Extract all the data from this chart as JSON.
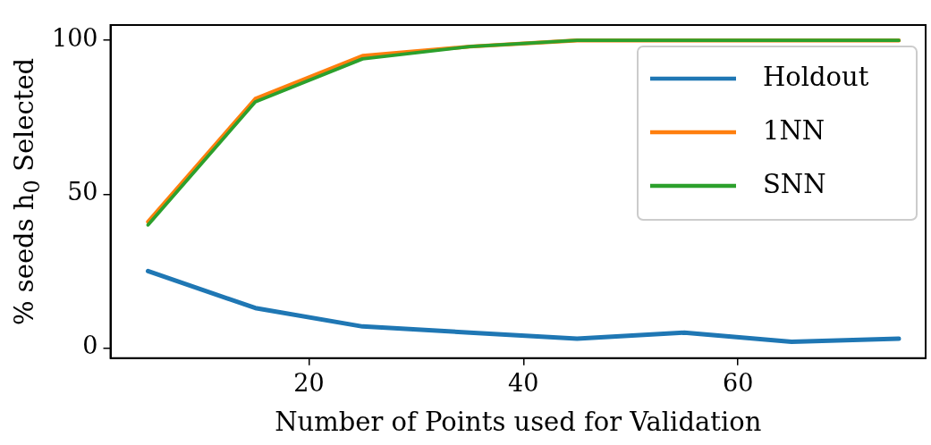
{
  "chart_data": {
    "type": "line",
    "xlabel": "Number of Points used for Validation",
    "ylabel": "% seeds h$_{0}$ Selected",
    "x": [
      5,
      15,
      25,
      35,
      45,
      55,
      65,
      75
    ],
    "series": [
      {
        "name": "Holdout",
        "color": "#1f77b4",
        "values": [
          25,
          13,
          7,
          5,
          3,
          5,
          2,
          3
        ]
      },
      {
        "name": "1NN",
        "color": "#ff7f0e",
        "values": [
          41,
          81,
          95,
          98,
          100,
          100,
          100,
          100
        ]
      },
      {
        "name": "SNN",
        "color": "#2ca02c",
        "values": [
          40,
          80,
          94,
          98,
          100,
          100,
          100,
          100
        ]
      }
    ],
    "xlim": [
      1.5,
      77.5
    ],
    "xticks": [
      20,
      40,
      60
    ],
    "ylim": [
      -3.3,
      105
    ],
    "yticks": [
      0,
      50,
      100
    ],
    "grid": false,
    "legend": "top right",
    "marker": "none",
    "line_style": "solid"
  }
}
